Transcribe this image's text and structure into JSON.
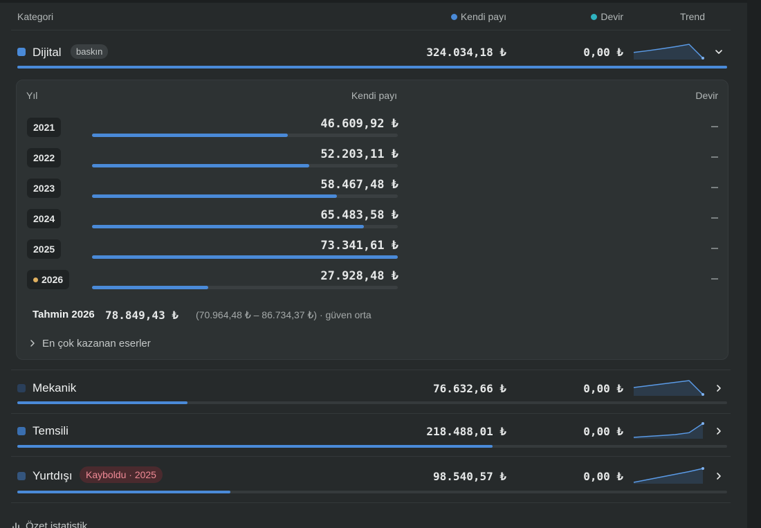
{
  "header": {
    "kategori": "Kategori",
    "kendi_payi": "Kendi payı",
    "devir": "Devir",
    "trend": "Trend",
    "kendi_payi_color": "#4a8ad8",
    "devir_color": "#2fb3c0"
  },
  "categories": [
    {
      "name": "Dijital",
      "tag": "baskın",
      "own": "324.034,18 ₺",
      "devir": "0,00 ₺",
      "color": "#4a8ad8",
      "share": 1.0,
      "expanded": true,
      "chevron": "chevron-down-icon",
      "trend": [
        46609.92,
        52203.11,
        58467.48,
        65483.58,
        73341.61,
        27928.48
      ]
    },
    {
      "name": "Mekanik",
      "tag": "",
      "own": "76.632,66 ₺",
      "devir": "0,00 ₺",
      "color": "#2a3f5a",
      "share": 0.24,
      "expanded": false,
      "chevron": "chevron-right-icon",
      "trend": [
        30,
        36,
        42,
        48,
        54,
        6
      ]
    },
    {
      "name": "Temsili",
      "tag": "",
      "own": "218.488,01 ₺",
      "devir": "0,00 ₺",
      "color": "#3a6fb0",
      "share": 0.67,
      "expanded": false,
      "chevron": "chevron-right-icon",
      "trend": [
        4,
        8,
        12,
        16,
        24,
        64
      ]
    },
    {
      "name": "Yurtdışı",
      "tag": "Kayboldu · 2025",
      "own": "98.540,57 ₺",
      "devir": "0,00 ₺",
      "color": "#34557d",
      "share": 0.3,
      "expanded": false,
      "chevron": "chevron-right-icon",
      "trend": [
        4,
        16,
        28,
        40,
        52,
        66
      ]
    }
  ],
  "detail": {
    "yil": "Yıl",
    "kendi_payi": "Kendi payı",
    "devir": "Devir",
    "years": [
      {
        "year": "2021",
        "value": "46.609,92 ₺",
        "fraction": 0.64,
        "devir": "–",
        "current": false
      },
      {
        "year": "2022",
        "value": "52.203,11 ₺",
        "fraction": 0.71,
        "devir": "–",
        "current": false
      },
      {
        "year": "2023",
        "value": "58.467,48 ₺",
        "fraction": 0.8,
        "devir": "–",
        "current": false
      },
      {
        "year": "2024",
        "value": "65.483,58 ₺",
        "fraction": 0.89,
        "devir": "–",
        "current": false
      },
      {
        "year": "2025",
        "value": "73.341,61 ₺",
        "fraction": 1.0,
        "devir": "–",
        "current": false
      },
      {
        "year": "2026",
        "value": "27.928,48 ₺",
        "fraction": 0.38,
        "devir": "–",
        "current": true
      }
    ],
    "forecast": {
      "label": "Tahmin 2026",
      "value": "78.849,43 ₺",
      "range": "(70.964,48 ₺ – 86.734,37 ₺) · güven orta"
    },
    "top_works": "En çok kazanan eserler"
  },
  "summary": {
    "label": "Özet istatistik",
    "icon": "bar-chart-icon"
  }
}
